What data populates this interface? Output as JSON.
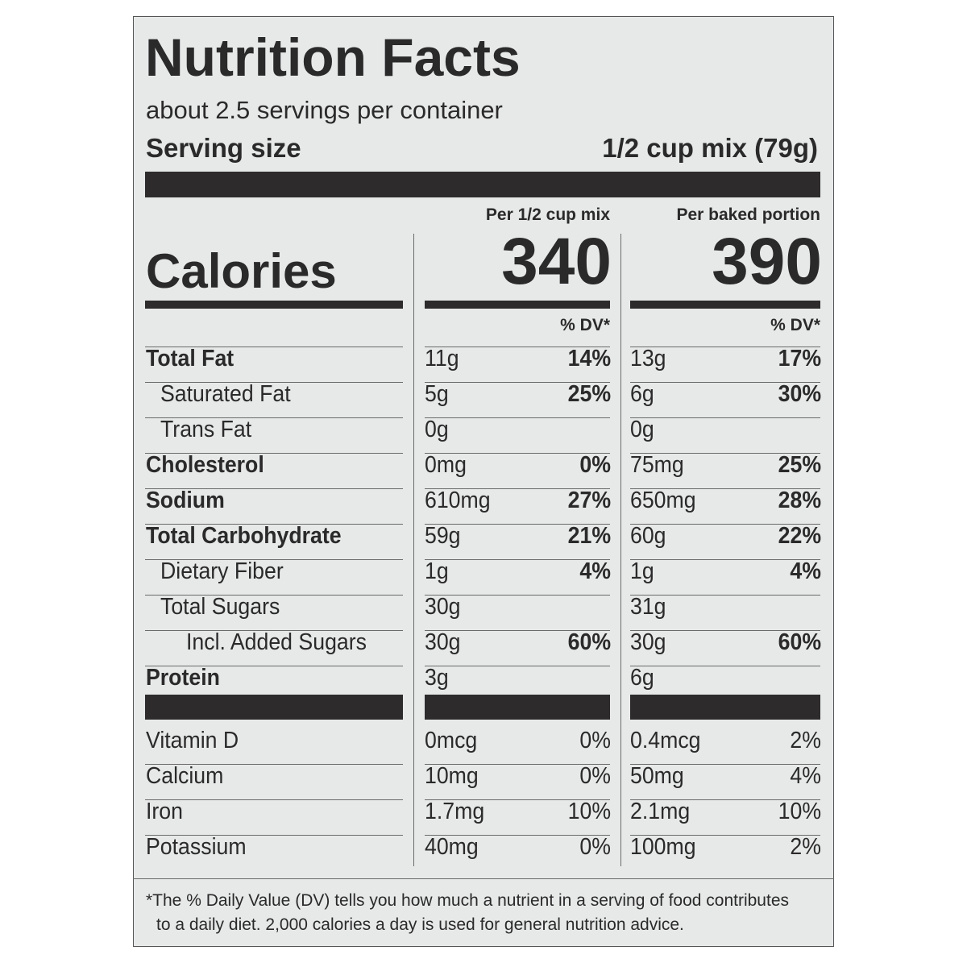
{
  "title": "Nutrition Facts",
  "servings": "about 2.5 servings per container",
  "serving_size": {
    "label": "Serving size",
    "value": "1/2 cup mix (79g)"
  },
  "calories_label": "Calories",
  "columns": [
    {
      "header": "Per 1/2 cup mix",
      "calories": "340",
      "dv_header": "% DV*"
    },
    {
      "header": "Per baked portion",
      "calories": "390",
      "dv_header": "% DV*"
    }
  ],
  "nutrients": [
    {
      "name": "Total Fat",
      "values": [
        {
          "amount": "11g",
          "dv": "14%"
        },
        {
          "amount": "13g",
          "dv": "17%"
        }
      ]
    },
    {
      "name": "Saturated Fat",
      "values": [
        {
          "amount": "5g",
          "dv": "25%"
        },
        {
          "amount": "6g",
          "dv": "30%"
        }
      ]
    },
    {
      "name": "Trans Fat",
      "values": [
        {
          "amount": "0g"
        },
        {
          "amount": "0g"
        }
      ]
    },
    {
      "name": "Cholesterol",
      "values": [
        {
          "amount": "0mg",
          "dv": "0%"
        },
        {
          "amount": "75mg",
          "dv": "25%"
        }
      ]
    },
    {
      "name": "Sodium",
      "values": [
        {
          "amount": "610mg",
          "dv": "27%"
        },
        {
          "amount": "650mg",
          "dv": "28%"
        }
      ]
    },
    {
      "name": "Total Carbohydrate",
      "values": [
        {
          "amount": "59g",
          "dv": "21%"
        },
        {
          "amount": "60g",
          "dv": "22%"
        }
      ]
    },
    {
      "name": "Dietary Fiber",
      "values": [
        {
          "amount": "1g",
          "dv": "4%"
        },
        {
          "amount": "1g",
          "dv": "4%"
        }
      ]
    },
    {
      "name": "Total Sugars",
      "values": [
        {
          "amount": "30g"
        },
        {
          "amount": "31g"
        }
      ]
    },
    {
      "name": "Incl. Added Sugars",
      "values": [
        {
          "amount": "30g",
          "dv": "60%"
        },
        {
          "amount": "30g",
          "dv": "60%"
        }
      ]
    },
    {
      "name": "Protein",
      "values": [
        {
          "amount": "3g"
        },
        {
          "amount": "6g"
        }
      ]
    }
  ],
  "vitamins": [
    {
      "name": "Vitamin D",
      "values": [
        {
          "amount": "0mcg",
          "dv": "0%"
        },
        {
          "amount": "0.4mcg",
          "dv": "2%"
        }
      ]
    },
    {
      "name": "Calcium",
      "values": [
        {
          "amount": "10mg",
          "dv": "0%"
        },
        {
          "amount": "50mg",
          "dv": "4%"
        }
      ]
    },
    {
      "name": "Iron",
      "values": [
        {
          "amount": "1.7mg",
          "dv": "10%"
        },
        {
          "amount": "2.1mg",
          "dv": "10%"
        }
      ]
    },
    {
      "name": "Potassium",
      "values": [
        {
          "amount": "40mg",
          "dv": "0%"
        },
        {
          "amount": "100mg",
          "dv": "2%"
        }
      ]
    }
  ],
  "footnote": [
    "*The % Daily Value (DV) tells you how much a nutrient in a serving of food contributes",
    "to a daily diet. 2,000 calories a day is used for general nutrition advice."
  ]
}
